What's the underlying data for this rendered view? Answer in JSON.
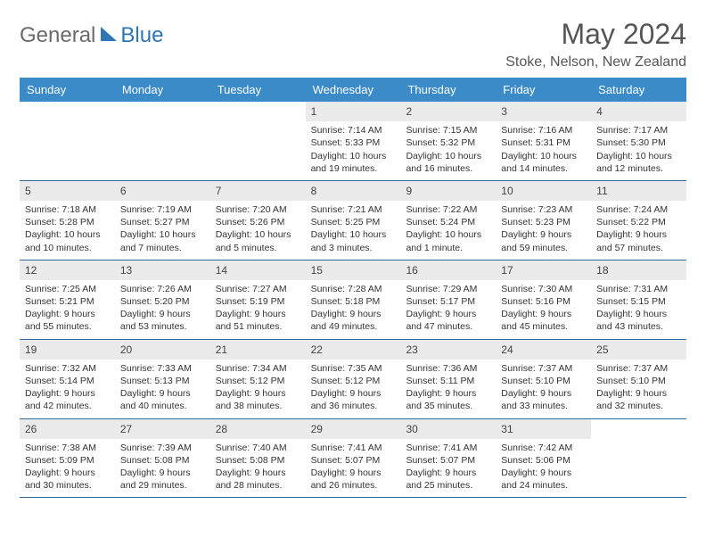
{
  "logo": {
    "general": "General",
    "blue": "Blue"
  },
  "title": "May 2024",
  "location": "Stoke, Nelson, New Zealand",
  "day_headers": [
    "Sunday",
    "Monday",
    "Tuesday",
    "Wednesday",
    "Thursday",
    "Friday",
    "Saturday"
  ],
  "colors": {
    "header_bg": "#3b8bc8",
    "row_border": "#2e6ca4",
    "daynum_bg": "#eaeaea"
  },
  "weeks": [
    [
      null,
      null,
      null,
      {
        "n": "1",
        "sr": "Sunrise: 7:14 AM",
        "ss": "Sunset: 5:33 PM",
        "dl": "Daylight: 10 hours and 19 minutes."
      },
      {
        "n": "2",
        "sr": "Sunrise: 7:15 AM",
        "ss": "Sunset: 5:32 PM",
        "dl": "Daylight: 10 hours and 16 minutes."
      },
      {
        "n": "3",
        "sr": "Sunrise: 7:16 AM",
        "ss": "Sunset: 5:31 PM",
        "dl": "Daylight: 10 hours and 14 minutes."
      },
      {
        "n": "4",
        "sr": "Sunrise: 7:17 AM",
        "ss": "Sunset: 5:30 PM",
        "dl": "Daylight: 10 hours and 12 minutes."
      }
    ],
    [
      {
        "n": "5",
        "sr": "Sunrise: 7:18 AM",
        "ss": "Sunset: 5:28 PM",
        "dl": "Daylight: 10 hours and 10 minutes."
      },
      {
        "n": "6",
        "sr": "Sunrise: 7:19 AM",
        "ss": "Sunset: 5:27 PM",
        "dl": "Daylight: 10 hours and 7 minutes."
      },
      {
        "n": "7",
        "sr": "Sunrise: 7:20 AM",
        "ss": "Sunset: 5:26 PM",
        "dl": "Daylight: 10 hours and 5 minutes."
      },
      {
        "n": "8",
        "sr": "Sunrise: 7:21 AM",
        "ss": "Sunset: 5:25 PM",
        "dl": "Daylight: 10 hours and 3 minutes."
      },
      {
        "n": "9",
        "sr": "Sunrise: 7:22 AM",
        "ss": "Sunset: 5:24 PM",
        "dl": "Daylight: 10 hours and 1 minute."
      },
      {
        "n": "10",
        "sr": "Sunrise: 7:23 AM",
        "ss": "Sunset: 5:23 PM",
        "dl": "Daylight: 9 hours and 59 minutes."
      },
      {
        "n": "11",
        "sr": "Sunrise: 7:24 AM",
        "ss": "Sunset: 5:22 PM",
        "dl": "Daylight: 9 hours and 57 minutes."
      }
    ],
    [
      {
        "n": "12",
        "sr": "Sunrise: 7:25 AM",
        "ss": "Sunset: 5:21 PM",
        "dl": "Daylight: 9 hours and 55 minutes."
      },
      {
        "n": "13",
        "sr": "Sunrise: 7:26 AM",
        "ss": "Sunset: 5:20 PM",
        "dl": "Daylight: 9 hours and 53 minutes."
      },
      {
        "n": "14",
        "sr": "Sunrise: 7:27 AM",
        "ss": "Sunset: 5:19 PM",
        "dl": "Daylight: 9 hours and 51 minutes."
      },
      {
        "n": "15",
        "sr": "Sunrise: 7:28 AM",
        "ss": "Sunset: 5:18 PM",
        "dl": "Daylight: 9 hours and 49 minutes."
      },
      {
        "n": "16",
        "sr": "Sunrise: 7:29 AM",
        "ss": "Sunset: 5:17 PM",
        "dl": "Daylight: 9 hours and 47 minutes."
      },
      {
        "n": "17",
        "sr": "Sunrise: 7:30 AM",
        "ss": "Sunset: 5:16 PM",
        "dl": "Daylight: 9 hours and 45 minutes."
      },
      {
        "n": "18",
        "sr": "Sunrise: 7:31 AM",
        "ss": "Sunset: 5:15 PM",
        "dl": "Daylight: 9 hours and 43 minutes."
      }
    ],
    [
      {
        "n": "19",
        "sr": "Sunrise: 7:32 AM",
        "ss": "Sunset: 5:14 PM",
        "dl": "Daylight: 9 hours and 42 minutes."
      },
      {
        "n": "20",
        "sr": "Sunrise: 7:33 AM",
        "ss": "Sunset: 5:13 PM",
        "dl": "Daylight: 9 hours and 40 minutes."
      },
      {
        "n": "21",
        "sr": "Sunrise: 7:34 AM",
        "ss": "Sunset: 5:12 PM",
        "dl": "Daylight: 9 hours and 38 minutes."
      },
      {
        "n": "22",
        "sr": "Sunrise: 7:35 AM",
        "ss": "Sunset: 5:12 PM",
        "dl": "Daylight: 9 hours and 36 minutes."
      },
      {
        "n": "23",
        "sr": "Sunrise: 7:36 AM",
        "ss": "Sunset: 5:11 PM",
        "dl": "Daylight: 9 hours and 35 minutes."
      },
      {
        "n": "24",
        "sr": "Sunrise: 7:37 AM",
        "ss": "Sunset: 5:10 PM",
        "dl": "Daylight: 9 hours and 33 minutes."
      },
      {
        "n": "25",
        "sr": "Sunrise: 7:37 AM",
        "ss": "Sunset: 5:10 PM",
        "dl": "Daylight: 9 hours and 32 minutes."
      }
    ],
    [
      {
        "n": "26",
        "sr": "Sunrise: 7:38 AM",
        "ss": "Sunset: 5:09 PM",
        "dl": "Daylight: 9 hours and 30 minutes."
      },
      {
        "n": "27",
        "sr": "Sunrise: 7:39 AM",
        "ss": "Sunset: 5:08 PM",
        "dl": "Daylight: 9 hours and 29 minutes."
      },
      {
        "n": "28",
        "sr": "Sunrise: 7:40 AM",
        "ss": "Sunset: 5:08 PM",
        "dl": "Daylight: 9 hours and 28 minutes."
      },
      {
        "n": "29",
        "sr": "Sunrise: 7:41 AM",
        "ss": "Sunset: 5:07 PM",
        "dl": "Daylight: 9 hours and 26 minutes."
      },
      {
        "n": "30",
        "sr": "Sunrise: 7:41 AM",
        "ss": "Sunset: 5:07 PM",
        "dl": "Daylight: 9 hours and 25 minutes."
      },
      {
        "n": "31",
        "sr": "Sunrise: 7:42 AM",
        "ss": "Sunset: 5:06 PM",
        "dl": "Daylight: 9 hours and 24 minutes."
      },
      null
    ]
  ]
}
